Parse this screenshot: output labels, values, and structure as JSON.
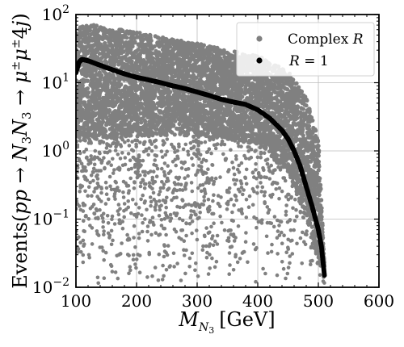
{
  "chart_data": {
    "type": "scatter",
    "title": "",
    "xlabel": "M_{N_3} [GeV]",
    "ylabel": "Events(pp → N_3N_3 → μ±μ±4j)",
    "xlim": [
      100,
      600
    ],
    "ylim": [
      0.01,
      100
    ],
    "yscale": "log",
    "grid": true,
    "legend_position": "top-right",
    "x_ticks": [
      100,
      200,
      300,
      400,
      500,
      600
    ],
    "x_tick_labels": [
      "100",
      "200",
      "300",
      "400",
      "500",
      "600"
    ],
    "y_ticks": [
      0.01,
      0.1,
      1,
      10,
      100
    ],
    "y_tick_labels": [
      {
        "base": "10",
        "exp": "−2"
      },
      {
        "base": "10",
        "exp": "−1"
      },
      {
        "base": "10",
        "exp": "0"
      },
      {
        "base": "10",
        "exp": "1"
      },
      {
        "base": "10",
        "exp": "2"
      }
    ],
    "series": [
      {
        "name": "Complex R",
        "color": "#808080",
        "kind": "scatter-band",
        "upper_envelope": [
          [
            100,
            55
          ],
          [
            110,
            75
          ],
          [
            150,
            65
          ],
          [
            200,
            55
          ],
          [
            250,
            45
          ],
          [
            300,
            38
          ],
          [
            350,
            30
          ],
          [
            400,
            25
          ],
          [
            450,
            15
          ],
          [
            480,
            6
          ],
          [
            500,
            1.5
          ],
          [
            505,
            0.2
          ],
          [
            510,
            0.02
          ]
        ],
        "dense_lower_envelope": [
          [
            100,
            1.5
          ],
          [
            150,
            1.5
          ],
          [
            200,
            1.6
          ],
          [
            250,
            1.7
          ],
          [
            300,
            1.6
          ],
          [
            350,
            1.5
          ],
          [
            400,
            1.2
          ],
          [
            450,
            0.5
          ],
          [
            480,
            0.1
          ],
          [
            500,
            0.02
          ]
        ],
        "sparse_range": [
          0.01,
          1.5
        ]
      },
      {
        "name": "R = 1",
        "color": "#000000",
        "kind": "scatter-line",
        "points": [
          [
            100,
            14
          ],
          [
            105,
            20
          ],
          [
            110,
            22
          ],
          [
            120,
            21
          ],
          [
            140,
            18
          ],
          [
            160,
            15.5
          ],
          [
            180,
            13.5
          ],
          [
            200,
            12
          ],
          [
            220,
            11
          ],
          [
            240,
            10
          ],
          [
            260,
            9
          ],
          [
            280,
            8.2
          ],
          [
            300,
            7.3
          ],
          [
            320,
            6.5
          ],
          [
            340,
            5.7
          ],
          [
            360,
            5.2
          ],
          [
            380,
            4.8
          ],
          [
            400,
            4
          ],
          [
            420,
            3
          ],
          [
            440,
            2
          ],
          [
            450,
            1.5
          ],
          [
            460,
            1
          ],
          [
            470,
            0.6
          ],
          [
            480,
            0.3
          ],
          [
            490,
            0.15
          ],
          [
            500,
            0.07
          ],
          [
            505,
            0.04
          ],
          [
            510,
            0.015
          ]
        ]
      }
    ]
  }
}
